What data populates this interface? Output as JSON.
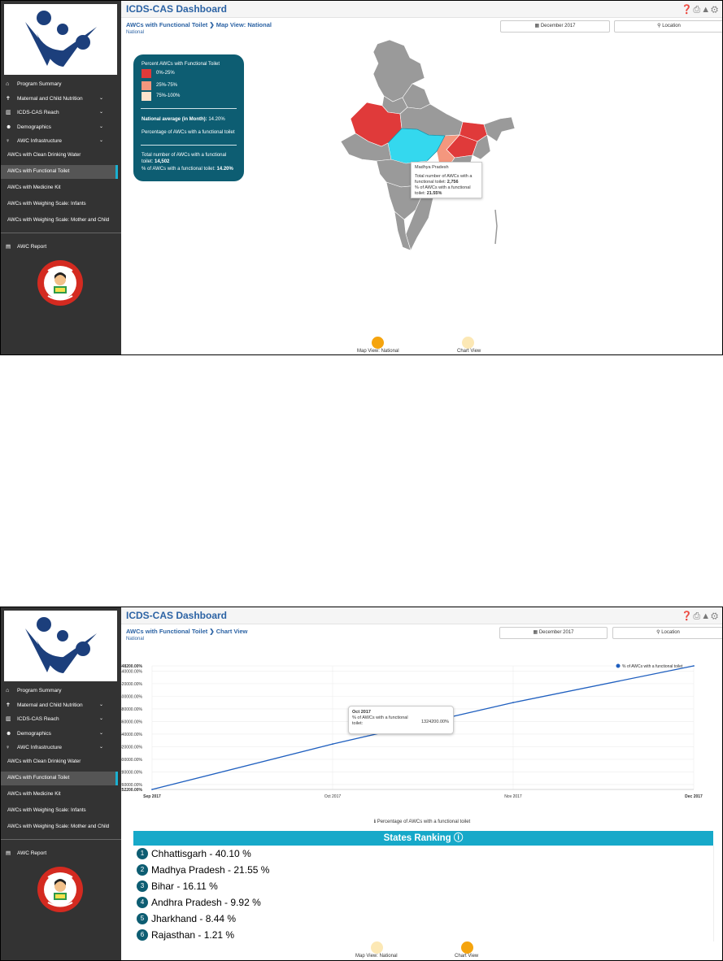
{
  "app_title": "ICDS-CAS Dashboard",
  "sidebar": {
    "items": [
      {
        "label": "Program Summary",
        "icon": "home-icon"
      },
      {
        "label": "Maternal and Child Nutrition",
        "icon": "child-icon"
      },
      {
        "label": "ICDS-CAS Reach",
        "icon": "bar-chart-icon"
      },
      {
        "label": "Demographics",
        "icon": "users-icon"
      },
      {
        "label": "AWC Infrastructure",
        "icon": "lightbulb-icon"
      }
    ],
    "sub_items": [
      "AWCs with Clean Drinking Water",
      "AWCs with Functional Toilet",
      "AWCs with Medicine Kit",
      "AWCs with Weighing Scale: Infants",
      "AWCs with Weighing Scale: Mother and Child"
    ],
    "active_sub_item": "AWCs with Functional Toilet",
    "report_label": "AWC Report"
  },
  "filters": {
    "date": "December 2017",
    "location": "Location"
  },
  "map_view": {
    "breadcrumb_section": "AWCs with Functional Toilet",
    "breadcrumb_view": "Map View: National",
    "subtitle": "National",
    "legend": {
      "title": "Percent AWCs with Functional Toilet",
      "ranges": [
        {
          "label": "0%-25%",
          "color": "#e03a3a"
        },
        {
          "label": "25%-75%",
          "color": "#f4977e"
        },
        {
          "label": "75%-100%",
          "color": "#fde3cc"
        }
      ],
      "national_average_label": "National average (in Month):",
      "national_average_value": "14.20%",
      "description": "Percentage of AWCs with a functional toilet",
      "total_label": "Total number of AWCs with a functional toilet:",
      "total_value": "14,502",
      "pct_label": "% of AWCs with a functional toilet:",
      "pct_value": "14.20%"
    },
    "tooltip": {
      "state": "Madhya Pradesh",
      "total_label": "Total number of AWCs with a functional toilet:",
      "total_value": "2,756",
      "pct_label": "% of AWCs with a functional toilet:",
      "pct_value": "21.55%"
    }
  },
  "chart_view": {
    "breadcrumb_section": "AWCs with Functional Toilet",
    "breadcrumb_view": "Chart View",
    "subtitle": "National",
    "legend_entry": "% of AWCs with a functional toilet",
    "x_caption": "Percentage of AWCs with a functional toilet",
    "tooltip": {
      "month": "Oct 2017",
      "label": "% of AWCs with a functional toilet:",
      "value": "1324200.00%"
    },
    "ranking_title": "States Ranking",
    "ranking": [
      {
        "rank": "1",
        "text": "Chhattisgarh - 40.10 %"
      },
      {
        "rank": "2",
        "text": "Madhya Pradesh - 21.55 %"
      },
      {
        "rank": "3",
        "text": "Bihar - 16.11 %"
      },
      {
        "rank": "4",
        "text": "Andhra Pradesh - 9.92 %"
      },
      {
        "rank": "5",
        "text": "Jharkhand - 8.44 %"
      },
      {
        "rank": "6",
        "text": "Rajasthan - 1.21 %"
      }
    ]
  },
  "toggles": {
    "map_label": "Map View: National",
    "chart_label": "Chart View",
    "active_color": "#f5a40e",
    "inactive_color": "#fce8b5"
  },
  "chart_data": {
    "type": "line",
    "categories": [
      "Sep 2017",
      "Oct 2017",
      "Nov 2017",
      "Dec 2017"
    ],
    "series": [
      {
        "name": "% of AWCs with a functional toilet",
        "values": [
          1252200,
          1324200,
          1390000,
          1448200
        ]
      }
    ],
    "y_ticks": [
      "1448200.00%",
      "1440000.00%",
      "1420000.00%",
      "1400000.00%",
      "1380000.00%",
      "1360000.00%",
      "1340000.00%",
      "1320000.00%",
      "1300000.00%",
      "1280000.00%",
      "1260000.00%",
      "1252200.00%"
    ],
    "ylim": [
      1252200,
      1448200
    ],
    "xlabel": "Percentage of AWCs with a functional toilet",
    "line_color": "#1f5fbf",
    "grid": true,
    "legend_position": "top-right"
  }
}
